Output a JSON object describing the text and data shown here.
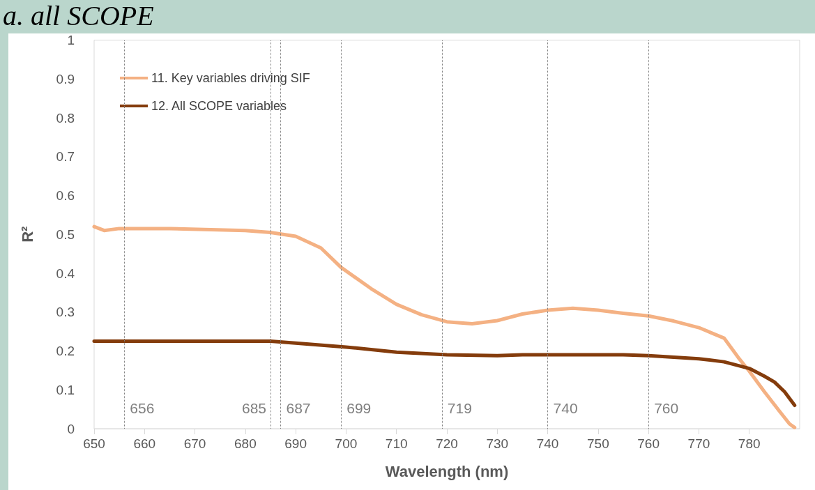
{
  "chart_data": {
    "type": "line",
    "title": "a. all SCOPE",
    "xlabel": "Wavelength (nm)",
    "ylabel": "R²",
    "series": [
      {
        "name": "11. Key variables driving SIF",
        "color": "#f4b183",
        "x": [
          650,
          652,
          655,
          665,
          680,
          685,
          690,
          695,
          699,
          705,
          710,
          715,
          720,
          725,
          730,
          735,
          740,
          745,
          750,
          755,
          760,
          765,
          770,
          775,
          778,
          780,
          783,
          786,
          788,
          789
        ],
        "values": [
          0.52,
          0.51,
          0.515,
          0.515,
          0.51,
          0.505,
          0.495,
          0.465,
          0.415,
          0.36,
          0.32,
          0.293,
          0.275,
          0.27,
          0.278,
          0.295,
          0.305,
          0.31,
          0.305,
          0.297,
          0.29,
          0.277,
          0.26,
          0.233,
          0.18,
          0.148,
          0.095,
          0.045,
          0.012,
          0.003
        ]
      },
      {
        "name": "12. All SCOPE variables",
        "color": "#843c0c",
        "x": [
          650,
          685,
          690,
          700,
          710,
          720,
          730,
          735,
          755,
          760,
          770,
          775,
          780,
          783,
          785,
          787,
          789
        ],
        "values": [
          0.225,
          0.225,
          0.22,
          0.21,
          0.197,
          0.19,
          0.188,
          0.19,
          0.19,
          0.188,
          0.18,
          0.172,
          0.155,
          0.135,
          0.12,
          0.095,
          0.06
        ]
      }
    ],
    "xlim": [
      650,
      790
    ],
    "xticks": [
      650,
      660,
      670,
      680,
      690,
      700,
      710,
      720,
      730,
      740,
      750,
      760,
      770,
      780
    ],
    "ylim": [
      0,
      1
    ],
    "yticks": [
      0,
      0.1,
      0.2,
      0.3,
      0.4,
      0.5,
      0.6,
      0.7,
      0.8,
      0.9,
      1
    ],
    "ref_lines": [
      {
        "axis": "x",
        "value": 656,
        "label": "656",
        "color": "#7f7f7f",
        "line_style": "dotted"
      },
      {
        "axis": "x",
        "value": 685,
        "label": "685",
        "color": "#7f7f7f",
        "line_style": "dotted"
      },
      {
        "axis": "x",
        "value": 687,
        "label": "687",
        "color": "#7f7f7f",
        "line_style": "dotted"
      },
      {
        "axis": "x",
        "value": 699,
        "label": "699",
        "color": "#7f7f7f",
        "line_style": "dotted"
      },
      {
        "axis": "x",
        "value": 719,
        "label": "719",
        "color": "#7f7f7f",
        "line_style": "dotted"
      },
      {
        "axis": "x",
        "value": 740,
        "label": "740",
        "color": "#7f7f7f",
        "line_style": "dotted"
      },
      {
        "axis": "x",
        "value": 760,
        "label": "760",
        "color": "#7f7f7f",
        "line_style": "dotted"
      }
    ],
    "grid": false,
    "legend": "top left",
    "marker": "none",
    "line_style": "solid"
  }
}
